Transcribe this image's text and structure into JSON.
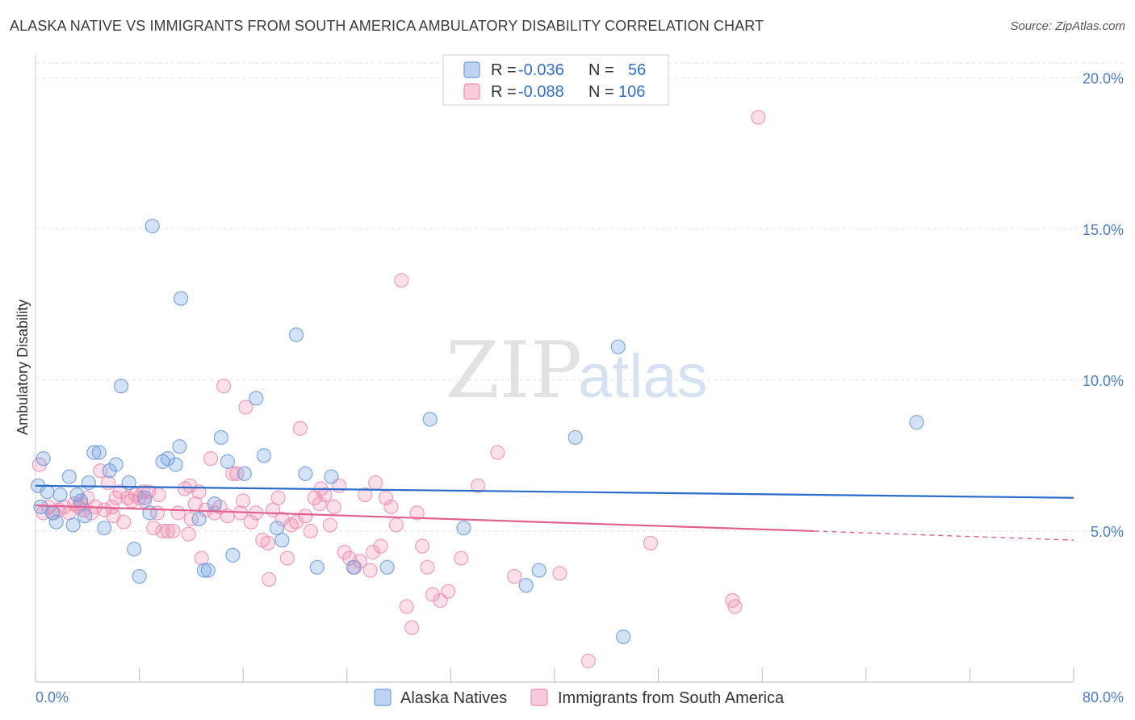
{
  "title": "ALASKA NATIVE VS IMMIGRANTS FROM SOUTH AMERICA AMBULATORY DISABILITY CORRELATION CHART",
  "source": "Source: ZipAtlas.com",
  "watermark": {
    "zip": "ZIP",
    "atlas": "atlas"
  },
  "colors": {
    "blue": "#6f9fe0",
    "blue_line": "#2b6ccb",
    "pink": "#f08db0",
    "pink_line": "#e0608f",
    "axis_label": "#4a7cc7"
  },
  "legend_box": {
    "rows": [
      {
        "r_label": "R =",
        "r_value": "-0.036",
        "n_label": "N =",
        "n_value": "56"
      },
      {
        "r_label": "R =",
        "r_value": "-0.088",
        "n_label": "N =",
        "n_value": "106"
      }
    ]
  },
  "chart_data": {
    "type": "scatter",
    "title": "ALASKA NATIVE VS IMMIGRANTS FROM SOUTH AMERICA AMBULATORY DISABILITY CORRELATION CHART",
    "xlabel": "",
    "ylabel": "Ambulatory Disability",
    "xlim": [
      0,
      80
    ],
    "ylim": [
      0,
      20.5
    ],
    "x_tick_labels": [
      "0.0%",
      "80.0%"
    ],
    "y_ticks": [
      5,
      10,
      15,
      20
    ],
    "y_tick_labels": [
      "5.0%",
      "10.0%",
      "15.0%",
      "20.0%"
    ],
    "grid": true,
    "legend_position": "bottom-center",
    "series": [
      {
        "name": "Alaska Natives",
        "color": "#6f9fe0",
        "R": -0.036,
        "N": 56,
        "trend": {
          "x": [
            0,
            80
          ],
          "y": [
            6.5,
            6.1
          ]
        },
        "points": [
          [
            0.2,
            6.5
          ],
          [
            0.6,
            7.4
          ],
          [
            0.9,
            6.3
          ],
          [
            1.3,
            5.6
          ],
          [
            1.6,
            5.3
          ],
          [
            1.9,
            6.2
          ],
          [
            2.6,
            6.8
          ],
          [
            2.9,
            5.2
          ],
          [
            3.2,
            6.2
          ],
          [
            3.5,
            6.0
          ],
          [
            3.8,
            5.5
          ],
          [
            4.1,
            6.6
          ],
          [
            4.5,
            7.6
          ],
          [
            4.9,
            7.6
          ],
          [
            5.3,
            5.1
          ],
          [
            5.7,
            7.0
          ],
          [
            6.2,
            7.2
          ],
          [
            6.6,
            9.8
          ],
          [
            7.2,
            6.6
          ],
          [
            7.6,
            4.4
          ],
          [
            8.0,
            3.5
          ],
          [
            8.4,
            6.1
          ],
          [
            8.8,
            5.6
          ],
          [
            9.0,
            15.1
          ],
          [
            9.8,
            7.3
          ],
          [
            10.8,
            7.2
          ],
          [
            11.1,
            7.8
          ],
          [
            11.2,
            12.7
          ],
          [
            12.6,
            5.4
          ],
          [
            13.0,
            3.7
          ],
          [
            13.3,
            3.7
          ],
          [
            13.8,
            5.9
          ],
          [
            14.3,
            8.1
          ],
          [
            14.8,
            7.3
          ],
          [
            15.2,
            4.2
          ],
          [
            16.1,
            6.9
          ],
          [
            17.0,
            9.4
          ],
          [
            17.6,
            7.5
          ],
          [
            18.6,
            5.1
          ],
          [
            19.0,
            4.7
          ],
          [
            20.1,
            11.5
          ],
          [
            20.8,
            6.9
          ],
          [
            21.7,
            3.8
          ],
          [
            22.8,
            6.8
          ],
          [
            24.5,
            3.8
          ],
          [
            27.1,
            3.8
          ],
          [
            30.4,
            8.7
          ],
          [
            33.0,
            5.1
          ],
          [
            37.8,
            3.2
          ],
          [
            38.8,
            3.7
          ],
          [
            41.6,
            8.1
          ],
          [
            44.9,
            11.1
          ],
          [
            45.3,
            1.5
          ],
          [
            67.9,
            8.6
          ],
          [
            0.4,
            5.8
          ],
          [
            10.2,
            7.4
          ]
        ]
      },
      {
        "name": "Immigrants from South America",
        "color": "#f08db0",
        "R": -0.088,
        "N": 106,
        "trend": {
          "x": [
            0,
            60
          ],
          "y": [
            5.85,
            5.0
          ]
        },
        "trend_dashed": {
          "x": [
            60,
            80
          ],
          "y": [
            5.0,
            4.7
          ]
        },
        "points": [
          [
            0.3,
            7.2
          ],
          [
            0.6,
            5.6
          ],
          [
            1.0,
            5.8
          ],
          [
            1.4,
            5.6
          ],
          [
            1.8,
            5.7
          ],
          [
            2.2,
            5.8
          ],
          [
            2.6,
            5.6
          ],
          [
            3.0,
            5.9
          ],
          [
            3.3,
            5.8
          ],
          [
            3.7,
            5.7
          ],
          [
            4.0,
            6.1
          ],
          [
            4.3,
            5.6
          ],
          [
            4.6,
            5.8
          ],
          [
            5.0,
            7.0
          ],
          [
            5.3,
            5.7
          ],
          [
            5.6,
            6.6
          ],
          [
            5.9,
            5.8
          ],
          [
            6.2,
            6.1
          ],
          [
            6.5,
            6.3
          ],
          [
            6.8,
            5.3
          ],
          [
            7.1,
            6.1
          ],
          [
            7.4,
            6.0
          ],
          [
            7.7,
            6.2
          ],
          [
            8.0,
            6.1
          ],
          [
            8.4,
            6.0
          ],
          [
            8.7,
            6.3
          ],
          [
            9.1,
            5.1
          ],
          [
            9.5,
            6.2
          ],
          [
            9.8,
            5.0
          ],
          [
            10.2,
            5.0
          ],
          [
            10.6,
            5.0
          ],
          [
            11.0,
            5.6
          ],
          [
            11.5,
            6.4
          ],
          [
            11.9,
            6.5
          ],
          [
            12.3,
            5.9
          ],
          [
            12.6,
            6.3
          ],
          [
            12.8,
            4.1
          ],
          [
            13.1,
            5.7
          ],
          [
            13.5,
            7.4
          ],
          [
            13.8,
            5.6
          ],
          [
            14.2,
            5.8
          ],
          [
            14.5,
            9.8
          ],
          [
            14.8,
            5.5
          ],
          [
            15.2,
            6.9
          ],
          [
            15.5,
            6.9
          ],
          [
            15.8,
            5.6
          ],
          [
            16.2,
            9.1
          ],
          [
            16.6,
            5.3
          ],
          [
            17.0,
            5.6
          ],
          [
            17.5,
            4.7
          ],
          [
            17.9,
            4.6
          ],
          [
            18.3,
            5.7
          ],
          [
            18.7,
            6.1
          ],
          [
            19.0,
            5.4
          ],
          [
            19.4,
            4.1
          ],
          [
            19.7,
            5.2
          ],
          [
            20.1,
            5.3
          ],
          [
            20.4,
            8.4
          ],
          [
            20.8,
            5.5
          ],
          [
            21.2,
            5.0
          ],
          [
            21.5,
            6.1
          ],
          [
            21.9,
            5.9
          ],
          [
            22.3,
            6.2
          ],
          [
            22.7,
            5.2
          ],
          [
            23.0,
            5.8
          ],
          [
            23.4,
            6.5
          ],
          [
            23.8,
            4.3
          ],
          [
            24.2,
            4.1
          ],
          [
            24.6,
            3.8
          ],
          [
            25.0,
            4.0
          ],
          [
            25.4,
            6.2
          ],
          [
            25.8,
            3.7
          ],
          [
            26.2,
            6.6
          ],
          [
            26.6,
            4.5
          ],
          [
            27.0,
            6.1
          ],
          [
            27.4,
            5.8
          ],
          [
            27.8,
            5.2
          ],
          [
            28.2,
            13.3
          ],
          [
            28.6,
            2.5
          ],
          [
            29.0,
            1.8
          ],
          [
            29.4,
            5.6
          ],
          [
            29.8,
            4.5
          ],
          [
            30.2,
            3.8
          ],
          [
            30.6,
            2.9
          ],
          [
            31.2,
            2.7
          ],
          [
            31.8,
            3.0
          ],
          [
            32.8,
            4.1
          ],
          [
            34.1,
            6.5
          ],
          [
            35.6,
            7.6
          ],
          [
            36.9,
            3.5
          ],
          [
            40.4,
            3.6
          ],
          [
            42.6,
            0.7
          ],
          [
            47.4,
            4.6
          ],
          [
            53.7,
            2.7
          ],
          [
            53.9,
            2.5
          ],
          [
            55.7,
            18.7
          ],
          [
            12.0,
            5.4
          ],
          [
            9.4,
            5.6
          ],
          [
            16.0,
            6.0
          ],
          [
            22.0,
            6.4
          ],
          [
            26.0,
            4.3
          ],
          [
            6.0,
            5.5
          ],
          [
            3.5,
            5.9
          ],
          [
            18.0,
            3.4
          ],
          [
            11.8,
            4.9
          ],
          [
            8.3,
            6.3
          ]
        ]
      }
    ]
  },
  "bottom_legend": [
    {
      "label": "Alaska Natives"
    },
    {
      "label": "Immigrants from South America"
    }
  ]
}
